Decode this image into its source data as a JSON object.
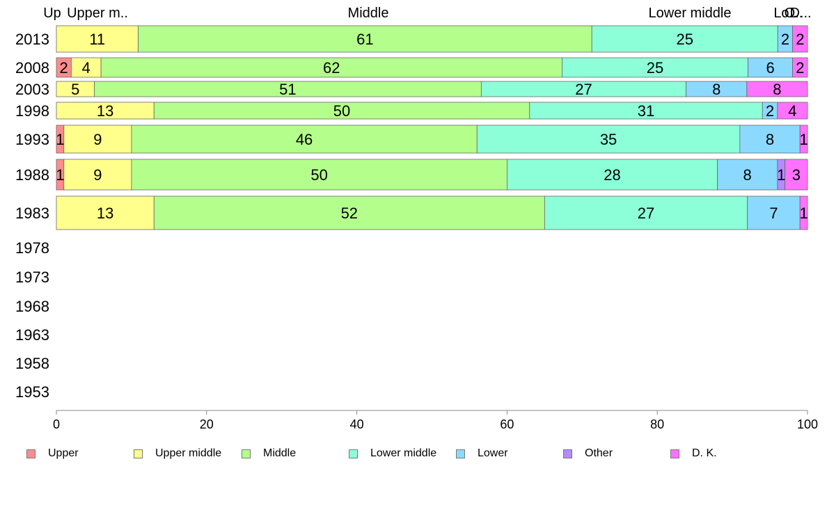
{
  "chart_data": {
    "type": "bar",
    "orientation": "horizontal",
    "stacked": true,
    "xlim": [
      0,
      100
    ],
    "x_ticks": [
      "0",
      "20",
      "40",
      "60",
      "80",
      "100"
    ],
    "categories": [
      "2013",
      "2008",
      "2003",
      "1998",
      "1993",
      "1988",
      "1983",
      "1978",
      "1973",
      "1968",
      "1963",
      "1958",
      "1953"
    ],
    "series": [
      {
        "name": "Upper",
        "color": "#ff8c8c",
        "values": [
          0,
          2,
          0,
          0,
          1,
          1,
          0,
          null,
          null,
          null,
          null,
          null,
          null
        ]
      },
      {
        "name": "Upper middle",
        "color": "#ffff8c",
        "values": [
          11,
          4,
          5,
          13,
          9,
          9,
          13,
          null,
          null,
          null,
          null,
          null,
          null
        ]
      },
      {
        "name": "Middle",
        "color": "#b4ff8c",
        "values": [
          61,
          62,
          51,
          50,
          46,
          50,
          52,
          null,
          null,
          null,
          null,
          null,
          null
        ]
      },
      {
        "name": "Lower middle",
        "color": "#8cffd9",
        "values": [
          25,
          25,
          27,
          31,
          35,
          28,
          27,
          null,
          null,
          null,
          null,
          null,
          null
        ]
      },
      {
        "name": "Lower",
        "color": "#8cd9ff",
        "values": [
          2,
          6,
          8,
          2,
          8,
          8,
          7,
          null,
          null,
          null,
          null,
          null,
          null
        ]
      },
      {
        "name": "Other",
        "color": "#b48cff",
        "values": [
          0,
          0,
          0,
          0,
          0,
          1,
          0,
          null,
          null,
          null,
          null,
          null,
          null
        ]
      },
      {
        "name": "D. K.",
        "color": "#ff72ff",
        "values": [
          2,
          2,
          8,
          4,
          1,
          3,
          1,
          null,
          null,
          null,
          null,
          null,
          null
        ]
      }
    ],
    "top_labels": [
      "Up",
      "Upper m..",
      "Middle",
      "Lower middle",
      "Lo..",
      "O..",
      "D..."
    ],
    "grid": false,
    "legend_position": "bottom"
  }
}
